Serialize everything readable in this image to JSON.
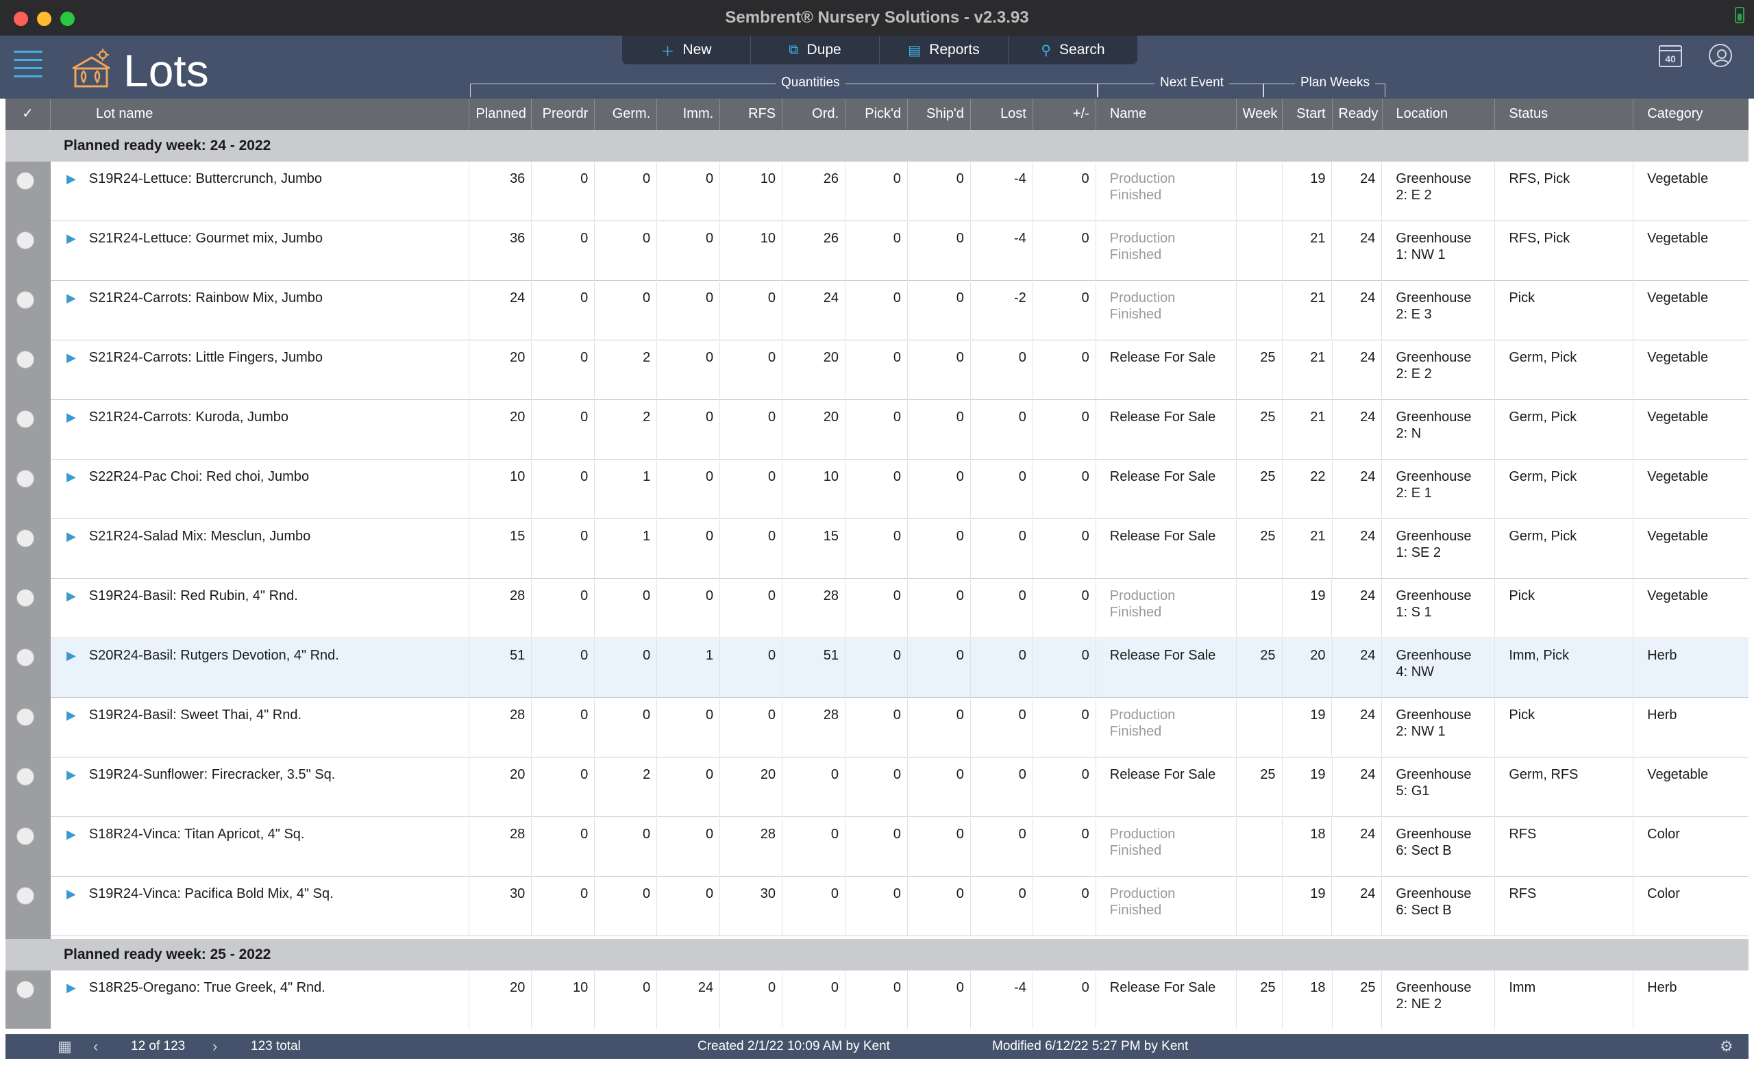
{
  "window": {
    "title": "Sembrent® Nursery Solutions - v2.3.93"
  },
  "header": {
    "title": "Lots",
    "calendar_week": "40",
    "toolbar": [
      {
        "icon": "plus-icon",
        "label": "New"
      },
      {
        "icon": "duplicate-icon",
        "label": "Dupe"
      },
      {
        "icon": "reports-icon",
        "label": "Reports"
      },
      {
        "icon": "search-icon",
        "label": "Search"
      }
    ],
    "groups": {
      "quantities": "Quantities",
      "next_event": "Next Event",
      "plan_weeks": "Plan Weeks"
    }
  },
  "columns": {
    "check": "✓",
    "lot_name": "Lot name",
    "planned": "Planned",
    "preordr": "Preordr",
    "germ": "Germ.",
    "imm": "Imm.",
    "rfs": "RFS",
    "ord": "Ord.",
    "pickd": "Pick'd",
    "shipd": "Ship'd",
    "lost": "Lost",
    "plusminus": "+/-",
    "name": "Name",
    "week": "Week",
    "start": "Start",
    "ready": "Ready",
    "location": "Location",
    "status": "Status",
    "category": "Category"
  },
  "groups": [
    {
      "label": "Planned ready week: 24 - 2022",
      "rows": [
        {
          "lot": "S19R24-Lettuce: Buttercrunch, Jumbo",
          "planned": "36",
          "preordr": "0",
          "germ": "0",
          "imm": "0",
          "rfs": "10",
          "ord": "26",
          "pickd": "0",
          "shipd": "0",
          "lost": "-4",
          "pm": "0",
          "event": "Production Finished",
          "event_muted": true,
          "week": "",
          "start": "19",
          "ready": "24",
          "location": "Greenhouse 2: E 2",
          "status": "RFS, Pick",
          "category": "Vegetable"
        },
        {
          "lot": "S21R24-Lettuce: Gourmet mix, Jumbo",
          "planned": "36",
          "preordr": "0",
          "germ": "0",
          "imm": "0",
          "rfs": "10",
          "ord": "26",
          "pickd": "0",
          "shipd": "0",
          "lost": "-4",
          "pm": "0",
          "event": "Production Finished",
          "event_muted": true,
          "week": "",
          "start": "21",
          "ready": "24",
          "location": "Greenhouse 1: NW 1",
          "status": "RFS, Pick",
          "category": "Vegetable"
        },
        {
          "lot": "S21R24-Carrots: Rainbow Mix, Jumbo",
          "planned": "24",
          "preordr": "0",
          "germ": "0",
          "imm": "0",
          "rfs": "0",
          "ord": "24",
          "pickd": "0",
          "shipd": "0",
          "lost": "-2",
          "pm": "0",
          "event": "Production Finished",
          "event_muted": true,
          "week": "",
          "start": "21",
          "ready": "24",
          "location": "Greenhouse 2: E 3",
          "status": "Pick",
          "category": "Vegetable"
        },
        {
          "lot": "S21R24-Carrots: Little Fingers, Jumbo",
          "planned": "20",
          "preordr": "0",
          "germ": "2",
          "imm": "0",
          "rfs": "0",
          "ord": "20",
          "pickd": "0",
          "shipd": "0",
          "lost": "0",
          "pm": "0",
          "event": "Release For Sale",
          "event_muted": false,
          "week": "25",
          "start": "21",
          "ready": "24",
          "location": "Greenhouse 2: E 2",
          "status": "Germ, Pick",
          "category": "Vegetable"
        },
        {
          "lot": "S21R24-Carrots: Kuroda, Jumbo",
          "planned": "20",
          "preordr": "0",
          "germ": "2",
          "imm": "0",
          "rfs": "0",
          "ord": "20",
          "pickd": "0",
          "shipd": "0",
          "lost": "0",
          "pm": "0",
          "event": "Release For Sale",
          "event_muted": false,
          "week": "25",
          "start": "21",
          "ready": "24",
          "location": "Greenhouse 2: N",
          "status": "Germ, Pick",
          "category": "Vegetable"
        },
        {
          "lot": "S22R24-Pac Choi: Red choi, Jumbo",
          "planned": "10",
          "preordr": "0",
          "germ": "1",
          "imm": "0",
          "rfs": "0",
          "ord": "10",
          "pickd": "0",
          "shipd": "0",
          "lost": "0",
          "pm": "0",
          "event": "Release For Sale",
          "event_muted": false,
          "week": "25",
          "start": "22",
          "ready": "24",
          "location": "Greenhouse 2: E 1",
          "status": "Germ, Pick",
          "category": "Vegetable"
        },
        {
          "lot": "S21R24-Salad Mix: Mesclun, Jumbo",
          "planned": "15",
          "preordr": "0",
          "germ": "1",
          "imm": "0",
          "rfs": "0",
          "ord": "15",
          "pickd": "0",
          "shipd": "0",
          "lost": "0",
          "pm": "0",
          "event": "Release For Sale",
          "event_muted": false,
          "week": "25",
          "start": "21",
          "ready": "24",
          "location": "Greenhouse 1: SE 2",
          "status": "Germ, Pick",
          "category": "Vegetable"
        },
        {
          "lot": "S19R24-Basil: Red Rubin, 4\" Rnd.",
          "planned": "28",
          "preordr": "0",
          "germ": "0",
          "imm": "0",
          "rfs": "0",
          "ord": "28",
          "pickd": "0",
          "shipd": "0",
          "lost": "0",
          "pm": "0",
          "event": "Production Finished",
          "event_muted": true,
          "week": "",
          "start": "19",
          "ready": "24",
          "location": "Greenhouse 1: S 1",
          "status": "Pick",
          "category": "Vegetable"
        },
        {
          "lot": "S20R24-Basil: Rutgers Devotion, 4\" Rnd.",
          "planned": "51",
          "preordr": "0",
          "germ": "0",
          "imm": "1",
          "rfs": "0",
          "ord": "51",
          "pickd": "0",
          "shipd": "0",
          "lost": "0",
          "pm": "0",
          "event": "Release For Sale",
          "event_muted": false,
          "week": "25",
          "start": "20",
          "ready": "24",
          "location": "Greenhouse 4: NW",
          "status": "Imm, Pick",
          "category": "Herb",
          "selected": true
        },
        {
          "lot": "S19R24-Basil: Sweet Thai, 4\" Rnd.",
          "planned": "28",
          "preordr": "0",
          "germ": "0",
          "imm": "0",
          "rfs": "0",
          "ord": "28",
          "pickd": "0",
          "shipd": "0",
          "lost": "0",
          "pm": "0",
          "event": "Production Finished",
          "event_muted": true,
          "week": "",
          "start": "19",
          "ready": "24",
          "location": "Greenhouse 2: NW 1",
          "status": "Pick",
          "category": "Herb"
        },
        {
          "lot": "S19R24-Sunflower: Firecracker, 3.5\" Sq.",
          "planned": "20",
          "preordr": "0",
          "germ": "2",
          "imm": "0",
          "rfs": "20",
          "ord": "0",
          "pickd": "0",
          "shipd": "0",
          "lost": "0",
          "pm": "0",
          "event": "Release For Sale",
          "event_muted": false,
          "week": "25",
          "start": "19",
          "ready": "24",
          "location": "Greenhouse 5: G1",
          "status": "Germ, RFS",
          "category": "Vegetable"
        },
        {
          "lot": "S18R24-Vinca: Titan Apricot, 4\" Sq.",
          "planned": "28",
          "preordr": "0",
          "germ": "0",
          "imm": "0",
          "rfs": "28",
          "ord": "0",
          "pickd": "0",
          "shipd": "0",
          "lost": "0",
          "pm": "0",
          "event": "Production Finished",
          "event_muted": true,
          "week": "",
          "start": "18",
          "ready": "24",
          "location": "Greenhouse 6: Sect B",
          "status": "RFS",
          "category": "Color"
        },
        {
          "lot": "S19R24-Vinca: Pacifica Bold Mix, 4\" Sq.",
          "planned": "30",
          "preordr": "0",
          "germ": "0",
          "imm": "0",
          "rfs": "30",
          "ord": "0",
          "pickd": "0",
          "shipd": "0",
          "lost": "0",
          "pm": "0",
          "event": "Production Finished",
          "event_muted": true,
          "week": "",
          "start": "19",
          "ready": "24",
          "location": "Greenhouse 6: Sect B",
          "status": "RFS",
          "category": "Color"
        }
      ]
    },
    {
      "label": "Planned ready week: 25 - 2022",
      "rows": [
        {
          "lot": "S18R25-Oregano: True Greek, 4\" Rnd.",
          "planned": "20",
          "preordr": "10",
          "germ": "0",
          "imm": "24",
          "rfs": "0",
          "ord": "0",
          "pickd": "0",
          "shipd": "0",
          "lost": "-4",
          "pm": "0",
          "event": "Release For Sale",
          "event_muted": false,
          "week": "25",
          "start": "18",
          "ready": "25",
          "location": "Greenhouse 2: NE 2",
          "status": "Imm",
          "category": "Herb"
        }
      ]
    }
  ],
  "statusbar": {
    "position": "12 of 123",
    "total": "123 total",
    "created": "Created 2/1/22 10:09 AM by Kent",
    "modified": "Modified 6/12/22 5:27 PM by Kent"
  }
}
